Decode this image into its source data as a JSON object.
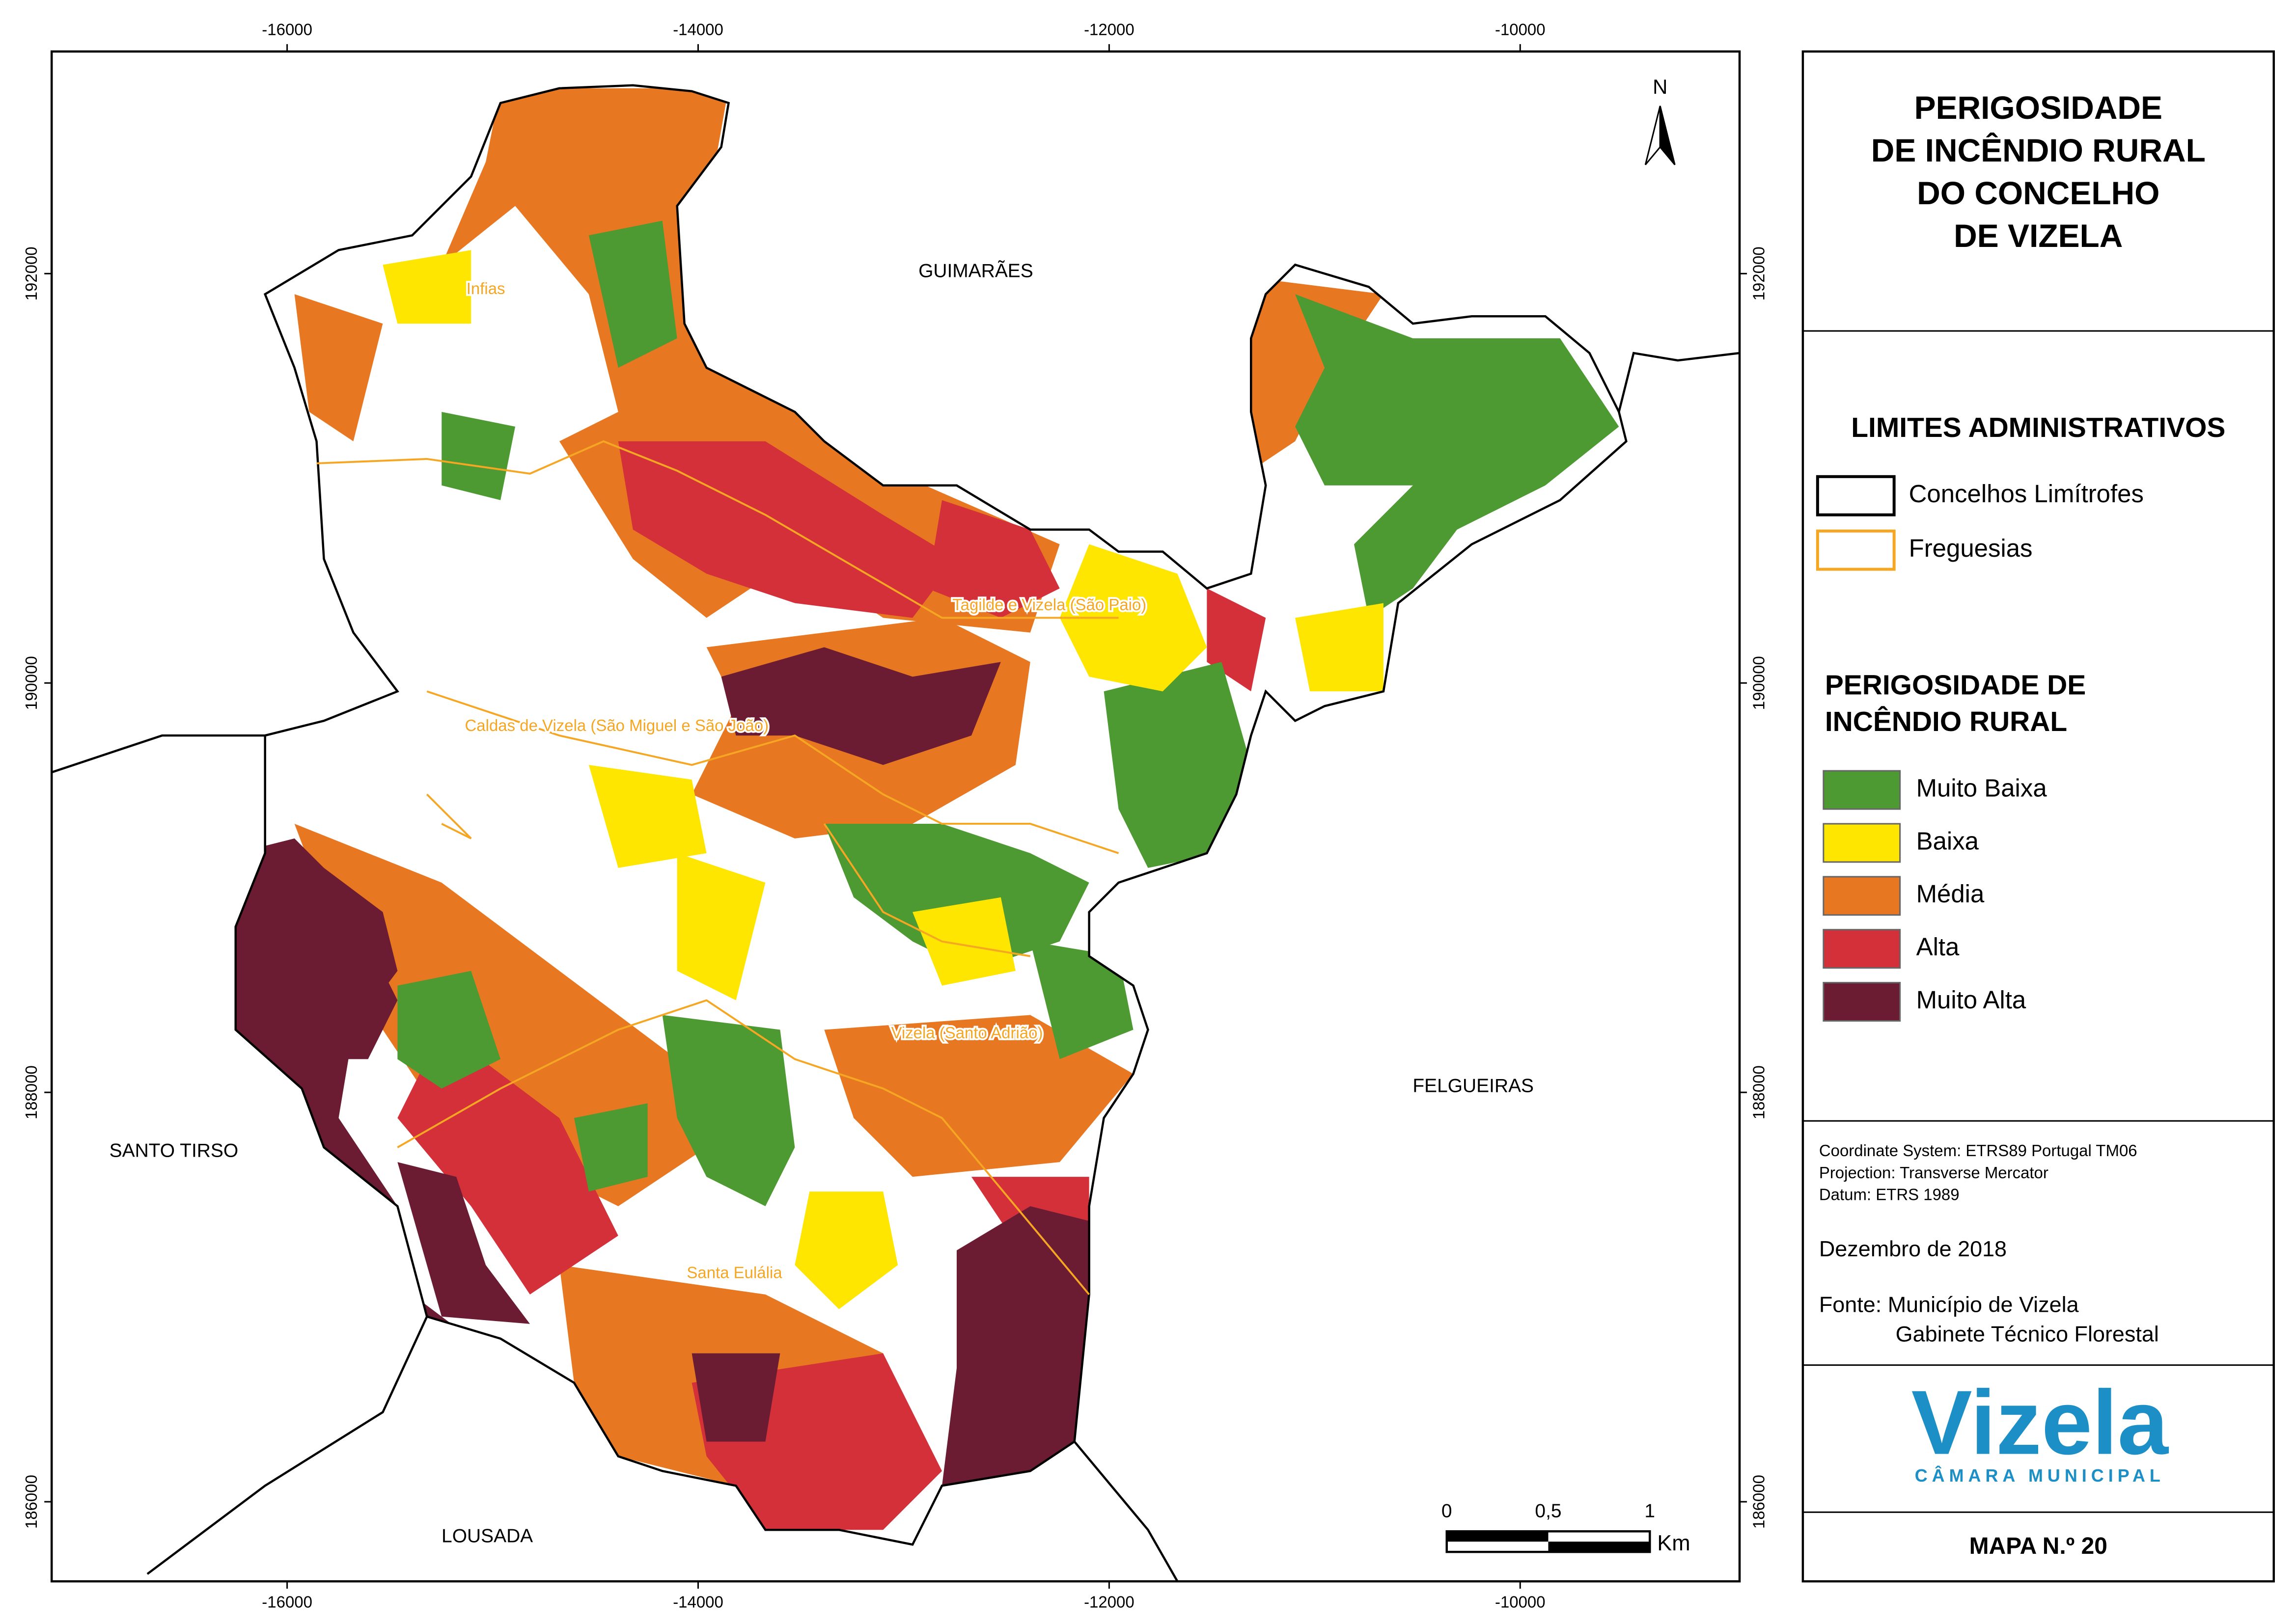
{
  "map": {
    "x_ticks": [
      -16000,
      -14000,
      -12000,
      -10000
    ],
    "y_ticks": [
      192000,
      190000,
      188000,
      186000
    ],
    "north": "N",
    "places": [
      "GUIMARÃES",
      "FELGUEIRAS",
      "SANTO TIRSO",
      "LOUSADA"
    ],
    "parishes": [
      "Infias",
      "Tagilde e Vizela (São Paio)",
      "Caldas de Vizela (São Miguel e São João)",
      "Vizela (Santo Adrião)",
      "Santa Eulália"
    ],
    "scale": {
      "labels": [
        "0",
        "0,5",
        "1"
      ],
      "unit": "Km"
    }
  },
  "panel": {
    "title": [
      "PERIGOSIDADE",
      "DE INCÊNDIO RURAL",
      "DO CONCELHO",
      "DE VIZELA"
    ],
    "admin_title": "LIMITES ADMINISTRATIVOS",
    "admin_items": [
      {
        "label": "Concelhos Limítrofes",
        "color": "#000000"
      },
      {
        "label": "Freguesias",
        "color": "#f5a623"
      }
    ],
    "hazard_title": [
      "PERIGOSIDADE DE",
      "INCÊNDIO RURAL"
    ],
    "hazard_items": [
      {
        "label": "Muito Baixa",
        "color": "#4e9a32"
      },
      {
        "label": "Baixa",
        "color": "#ffe600"
      },
      {
        "label": "Média",
        "color": "#e87722"
      },
      {
        "label": "Alta",
        "color": "#d4303a"
      },
      {
        "label": "Muito Alta",
        "color": "#6b1c33"
      }
    ],
    "coordinate_info": [
      "Coordinate System: ETRS89 Portugal TM06",
      "Projection: Transverse Mercator",
      "Datum: ETRS 1989"
    ],
    "date": "Dezembro de 2018",
    "source": [
      "Fonte: Município de Vizela",
      "Gabinete Técnico Florestal"
    ],
    "logo": {
      "name": "Vizela",
      "subtitle": "CÂMARA MUNICIPAL"
    },
    "map_number": "MAPA N.º 20"
  }
}
